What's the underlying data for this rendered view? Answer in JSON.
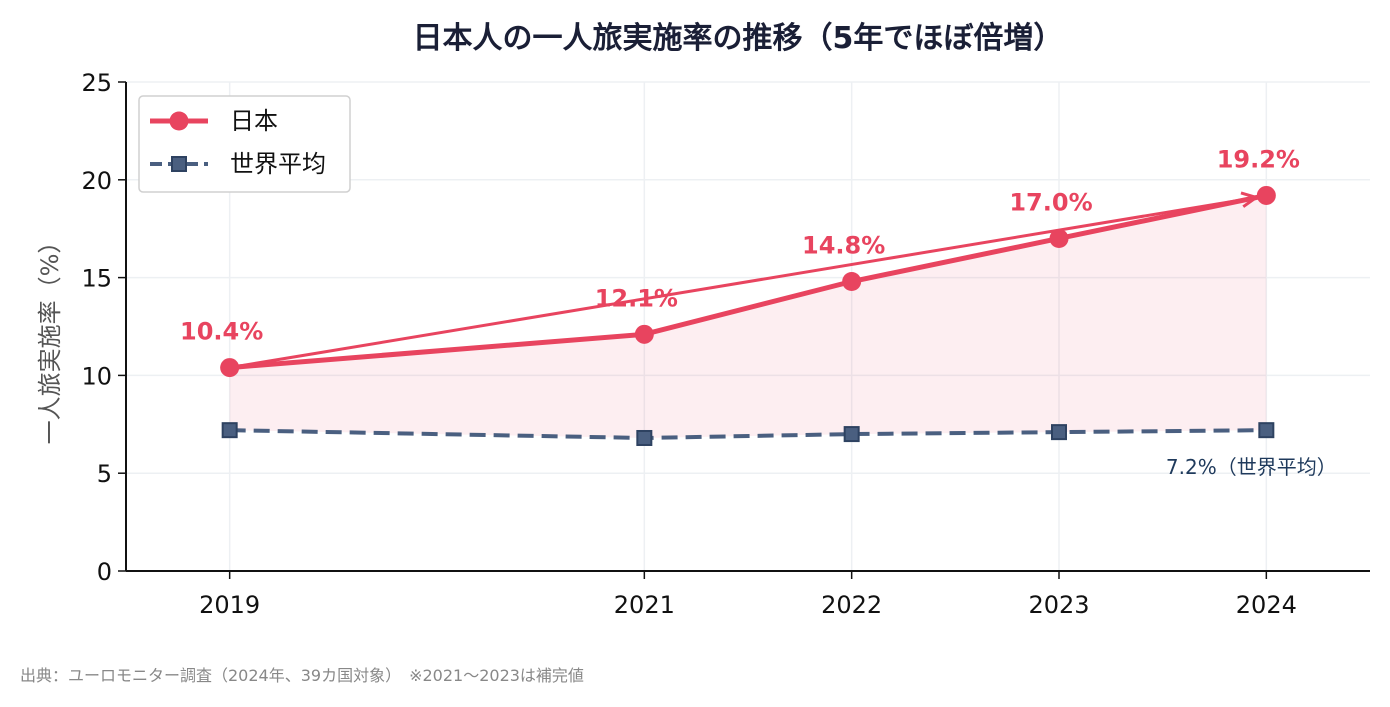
{
  "chart_data": {
    "type": "line",
    "title": "日本人の一人旅実施率の推移（5年でほぼ倍増）",
    "ylabel": "一人旅実施率（%）",
    "xlabel": "",
    "x": [
      2019,
      2021,
      2022,
      2023,
      2024
    ],
    "xticks": [
      "2019",
      "2021",
      "2022",
      "2023",
      "2024"
    ],
    "xlim": [
      2018.5,
      2024.5
    ],
    "ylim": [
      0,
      25
    ],
    "yticks": [
      "0",
      "5",
      "10",
      "15",
      "20",
      "25"
    ],
    "grid": true,
    "legend_position": "top-left",
    "series": [
      {
        "name": "日本",
        "values": [
          10.4,
          12.1,
          14.8,
          17.0,
          19.2
        ],
        "labels": [
          "10.4%",
          "12.1%",
          "14.8%",
          "17.0%",
          "19.2%"
        ],
        "color": "#e8445f",
        "marker": "circle",
        "style": "solid",
        "fill_area": true
      },
      {
        "name": "世界平均",
        "values": [
          7.2,
          6.8,
          7.0,
          7.1,
          7.2
        ],
        "end_label": "7.2%（世界平均）",
        "color": "#4a5f80",
        "marker": "square",
        "style": "dashed"
      }
    ],
    "arrow": {
      "from": [
        2019,
        10.4
      ],
      "to": [
        2024,
        19.2
      ],
      "color": "#e8445f"
    },
    "source_note": "出典：ユーロモニター調査（2024年、39カ国対象）　※2021〜2023は補完値"
  }
}
